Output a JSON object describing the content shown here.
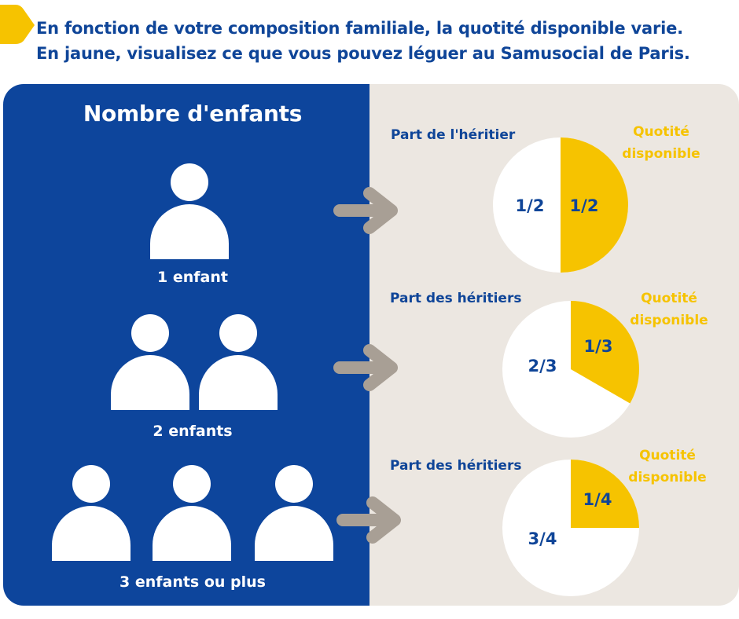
{
  "header": {
    "line1": "En fonction de votre composition familiale, la quotité disponible varie.",
    "line2": "En jaune, visualisez ce que vous pouvez léguer au Samusocial de Paris."
  },
  "left_panel": {
    "title": "Nombre d'enfants",
    "rows": [
      {
        "label": "1 enfant",
        "people_icons": 1
      },
      {
        "label": "2 enfants",
        "people_icons": 2
      },
      {
        "label": "3 enfants ou plus",
        "people_icons": 3
      }
    ]
  },
  "right_panel": {
    "pies": [
      {
        "heir_label": "Part de l'héritier",
        "quotite_line1": "Quotité",
        "quotite_line2": "disponible",
        "heir_fraction": "1/2",
        "available_fraction": "1/2",
        "available_share": 0.5
      },
      {
        "heir_label": "Part des héritiers",
        "quotite_line1": "Quotité",
        "quotite_line2": "disponible",
        "heir_fraction": "2/3",
        "available_fraction": "1/3",
        "available_share": 0.3333
      },
      {
        "heir_label": "Part des héritiers",
        "quotite_line1": "Quotité",
        "quotite_line2": "disponible",
        "heir_fraction": "3/4",
        "available_fraction": "1/4",
        "available_share": 0.25
      }
    ]
  },
  "colors": {
    "blue_panel": "#0d459c",
    "beige_panel": "#ece7e1",
    "accent_yellow": "#f6c300",
    "text_blue": "#0f4598",
    "arrow_gray": "#a89f95",
    "pie_white": "#ffffff"
  },
  "icons": [
    "person-icon",
    "arrow-right-icon",
    "brand-mark-icon"
  ]
}
